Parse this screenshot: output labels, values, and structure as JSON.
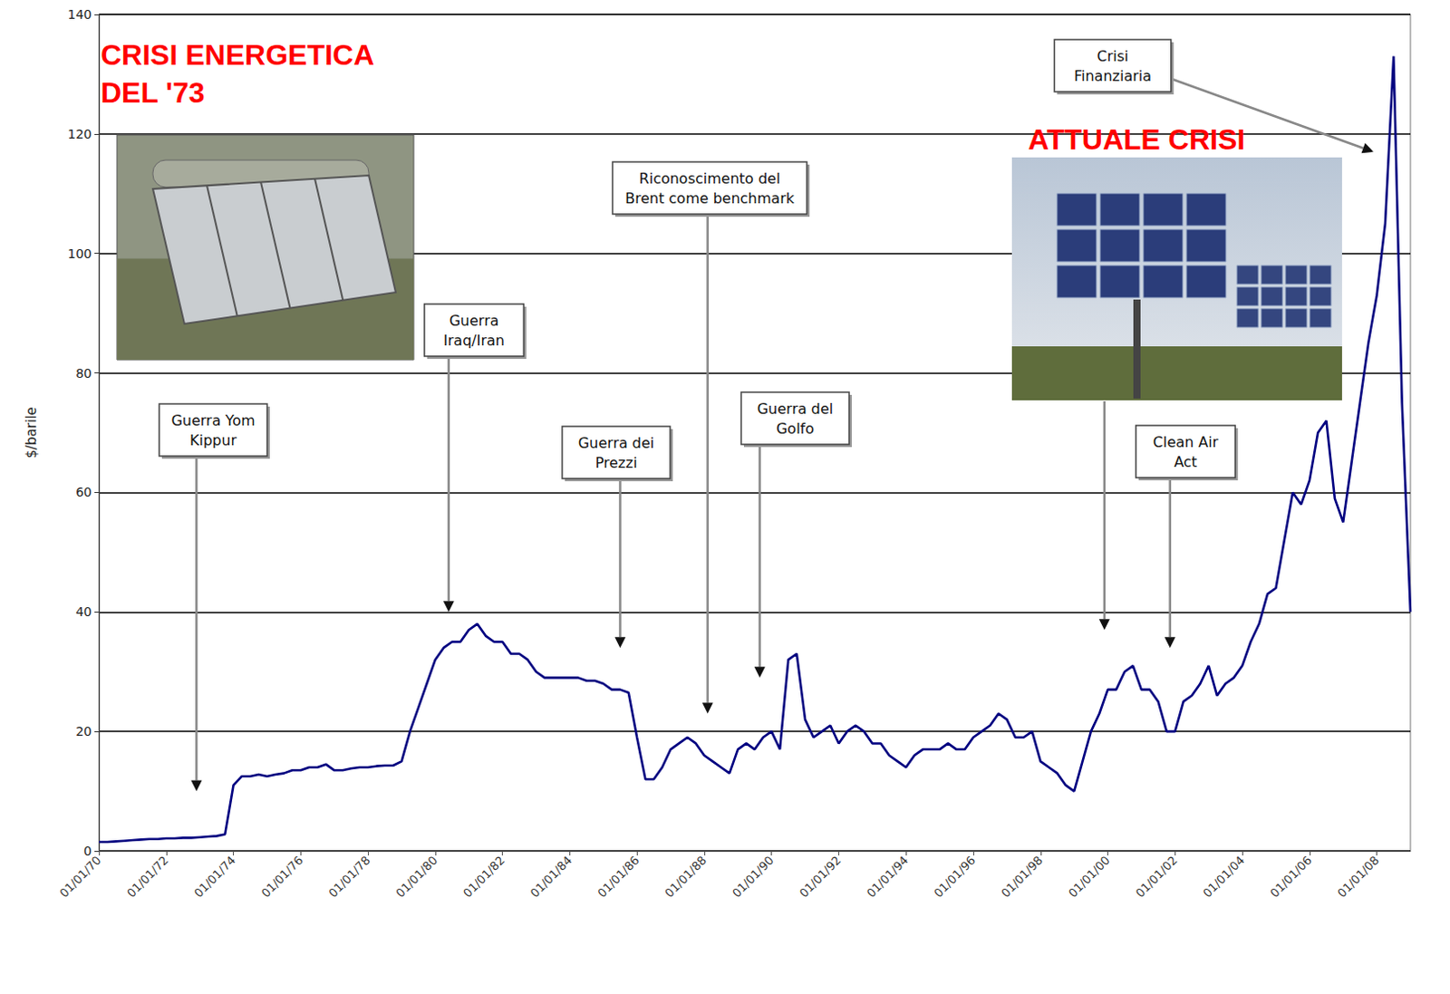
{
  "chart_data": {
    "type": "line",
    "y_label": "$/barile",
    "color": "#000080",
    "grid": true,
    "xlim": [
      1970,
      2009
    ],
    "xticks": [
      {
        "value": 1970,
        "label": "01/01/70"
      },
      {
        "value": 1972,
        "label": "01/01/72"
      },
      {
        "value": 1974,
        "label": "01/01/74"
      },
      {
        "value": 1976,
        "label": "01/01/76"
      },
      {
        "value": 1978,
        "label": "01/01/78"
      },
      {
        "value": 1980,
        "label": "01/01/80"
      },
      {
        "value": 1982,
        "label": "01/01/82"
      },
      {
        "value": 1984,
        "label": "01/01/84"
      },
      {
        "value": 1986,
        "label": "01/01/86"
      },
      {
        "value": 1988,
        "label": "01/01/88"
      },
      {
        "value": 1990,
        "label": "01/01/90"
      },
      {
        "value": 1992,
        "label": "01/01/92"
      },
      {
        "value": 1994,
        "label": "01/01/94"
      },
      {
        "value": 1996,
        "label": "01/01/96"
      },
      {
        "value": 1998,
        "label": "01/01/98"
      },
      {
        "value": 2000,
        "label": "01/01/00"
      },
      {
        "value": 2002,
        "label": "01/01/02"
      },
      {
        "value": 2004,
        "label": "01/01/04"
      },
      {
        "value": 2006,
        "label": "01/01/06"
      },
      {
        "value": 2008,
        "label": "01/01/08"
      }
    ],
    "ylim": [
      0,
      140
    ],
    "yticks": [
      0,
      20,
      40,
      60,
      80,
      100,
      120,
      140
    ],
    "x": [
      1970,
      1970.25,
      1970.5,
      1970.75,
      1971,
      1971.25,
      1971.5,
      1971.75,
      1972,
      1972.25,
      1972.5,
      1972.75,
      1973,
      1973.25,
      1973.5,
      1973.75,
      1974,
      1974.25,
      1974.5,
      1974.75,
      1975,
      1975.25,
      1975.5,
      1975.75,
      1976,
      1976.25,
      1976.5,
      1976.75,
      1977,
      1977.25,
      1977.5,
      1977.75,
      1978,
      1978.25,
      1978.5,
      1978.75,
      1979,
      1979.25,
      1979.5,
      1979.75,
      1980,
      1980.25,
      1980.5,
      1980.75,
      1981,
      1981.25,
      1981.5,
      1981.75,
      1982,
      1982.25,
      1982.5,
      1982.75,
      1983,
      1983.25,
      1983.5,
      1983.75,
      1984,
      1984.25,
      1984.5,
      1984.75,
      1985,
      1985.25,
      1985.5,
      1985.75,
      1986,
      1986.25,
      1986.5,
      1986.75,
      1987,
      1987.25,
      1987.5,
      1987.75,
      1988,
      1988.25,
      1988.5,
      1988.75,
      1989,
      1989.25,
      1989.5,
      1989.75,
      1990,
      1990.25,
      1990.5,
      1990.75,
      1991,
      1991.25,
      1991.5,
      1991.75,
      1992,
      1992.25,
      1992.5,
      1992.75,
      1993,
      1993.25,
      1993.5,
      1993.75,
      1994,
      1994.25,
      1994.5,
      1994.75,
      1995,
      1995.25,
      1995.5,
      1995.75,
      1996,
      1996.25,
      1996.5,
      1996.75,
      1997,
      1997.25,
      1997.5,
      1997.75,
      1998,
      1998.25,
      1998.5,
      1998.75,
      1999,
      1999.25,
      1999.5,
      1999.75,
      2000,
      2000.25,
      2000.5,
      2000.75,
      2001,
      2001.25,
      2001.5,
      2001.75,
      2002,
      2002.25,
      2002.5,
      2002.75,
      2003,
      2003.25,
      2003.5,
      2003.75,
      2004,
      2004.25,
      2004.5,
      2004.75,
      2005,
      2005.25,
      2005.5,
      2005.75,
      2006,
      2006.25,
      2006.5,
      2006.75,
      2007,
      2007.25,
      2007.5,
      2007.75,
      2008,
      2008.25,
      2008.5,
      2008.75,
      2009
    ],
    "values": [
      1.5,
      1.5,
      1.6,
      1.7,
      1.8,
      1.9,
      2.0,
      2.0,
      2.1,
      2.1,
      2.2,
      2.2,
      2.3,
      2.4,
      2.5,
      2.8,
      11,
      12.5,
      12.5,
      12.8,
      12.5,
      12.8,
      13,
      13.5,
      13.5,
      14,
      14,
      14.5,
      13.5,
      13.5,
      13.8,
      14,
      14,
      14.2,
      14.3,
      14.3,
      15,
      20,
      24,
      28,
      32,
      34,
      35,
      35,
      37,
      38,
      36,
      35,
      35,
      33,
      33,
      32,
      30,
      29,
      29,
      29,
      29,
      29,
      28.5,
      28.5,
      28,
      27,
      27,
      26.5,
      19,
      12,
      12,
      14,
      17,
      18,
      19,
      18,
      16,
      15,
      14,
      13,
      17,
      18,
      17,
      19,
      20,
      17,
      32,
      33,
      22,
      19,
      20,
      21,
      18,
      20,
      21,
      20,
      18,
      18,
      16,
      15,
      14,
      16,
      17,
      17,
      17,
      18,
      17,
      17,
      19,
      20,
      21,
      23,
      22,
      19,
      19,
      20,
      15,
      14,
      13,
      11,
      10,
      15,
      20,
      23,
      27,
      27,
      30,
      31,
      27,
      27,
      25,
      20,
      20,
      25,
      26,
      28,
      31,
      26,
      28,
      29,
      31,
      35,
      38,
      43,
      44,
      52,
      60,
      58,
      62,
      70,
      72,
      59,
      55,
      65,
      75,
      85,
      93,
      105,
      133,
      75,
      40
    ],
    "annotations": [
      {
        "text": "CRISI ENERGETICA DEL '73",
        "color": "#ff0000"
      },
      {
        "text": "ATTUALE CRISI",
        "color": "#ff0000"
      },
      {
        "text": "Guerra Yom Kippur",
        "x": 1972.9,
        "y": 10
      },
      {
        "text": "Guerra Iraq/Iran",
        "x": 1980.4,
        "y": 40
      },
      {
        "text": "Guerra dei Prezzi",
        "x": 1985.5,
        "y": 34
      },
      {
        "text": "Riconoscimento del Brent come benchmark",
        "x": 1988.1,
        "y": 23
      },
      {
        "text": "Guerra del Golfo",
        "x": 1989.65,
        "y": 29
      },
      {
        "x": 1999.9,
        "y": 37
      },
      {
        "text": "Clean Air Act",
        "x": 2001.85,
        "y": 34
      },
      {
        "text": "Crisi Finanziaria",
        "x": 2007.9,
        "y": 117
      }
    ]
  }
}
